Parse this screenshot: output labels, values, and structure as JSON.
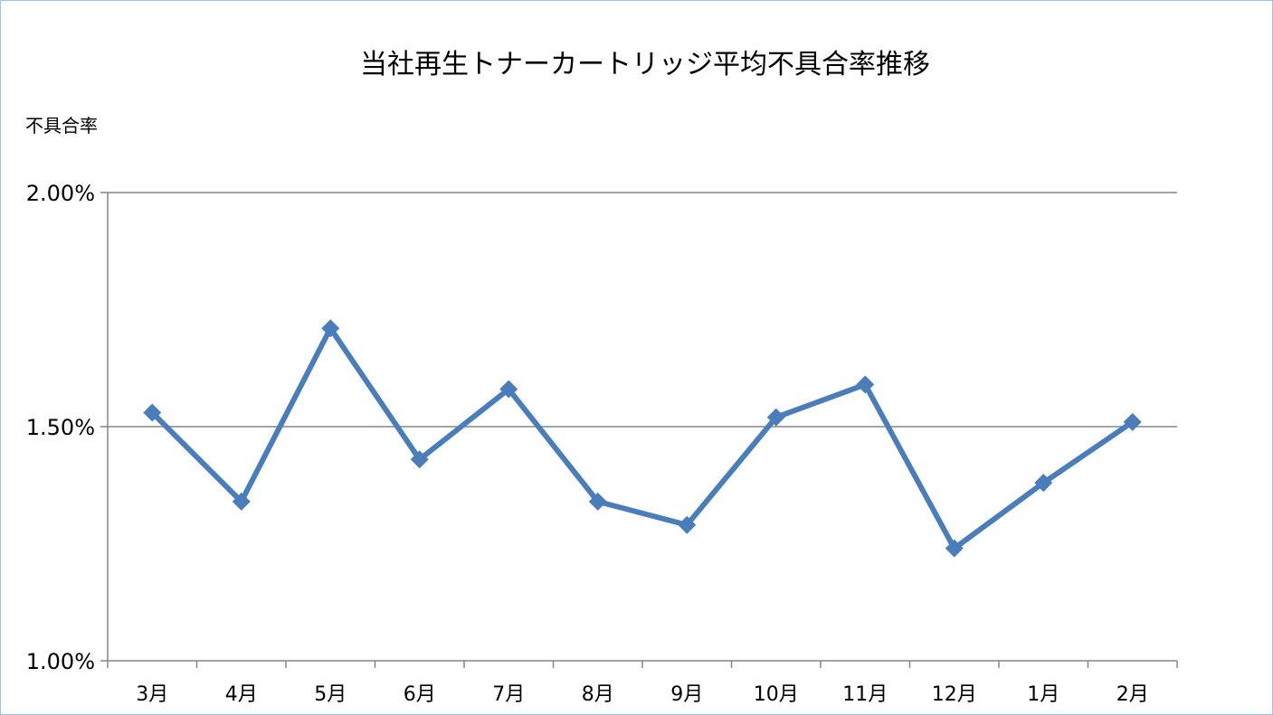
{
  "chart_data": {
    "type": "line",
    "title": "当社再生トナーカートリッジ平均不具合率推移",
    "ylabel": "不具合率",
    "xlabel": "",
    "categories": [
      "3月",
      "4月",
      "5月",
      "6月",
      "7月",
      "8月",
      "9月",
      "10月",
      "11月",
      "12月",
      "1月",
      "2月"
    ],
    "series": [
      {
        "values": [
          1.53,
          1.34,
          1.71,
          1.43,
          1.58,
          1.34,
          1.29,
          1.52,
          1.59,
          1.24,
          1.38,
          1.51
        ]
      }
    ],
    "ylim": [
      1.0,
      2.0
    ],
    "yticks": [
      1.0,
      1.5,
      2.0
    ],
    "ytick_labels": [
      "1.00%",
      "1.50%",
      "2.00%"
    ],
    "grid": true,
    "legend": "none",
    "colors": {
      "line": "#4a7ebb",
      "grid": "#868686",
      "axis": "#868686",
      "frame": "#9dc3e6"
    }
  }
}
